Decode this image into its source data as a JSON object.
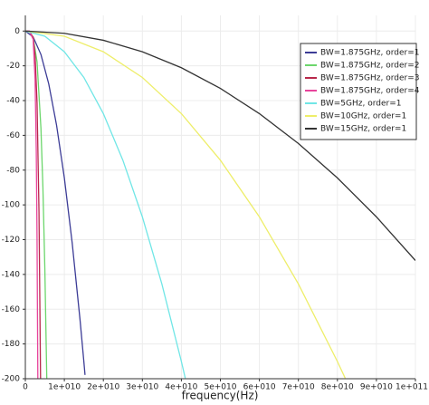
{
  "chart_data": {
    "type": "line",
    "x_label": "frequency(Hz)",
    "xlim": [
      0,
      100000000000
    ],
    "ylim": [
      -200,
      9
    ],
    "xticks": [
      0,
      {
        "value": 10000000000,
        "label": "1e+010"
      },
      {
        "value": 20000000000,
        "label": "2e+010"
      },
      {
        "value": 30000000000,
        "label": "3e+010"
      },
      {
        "value": 40000000000,
        "label": "4e+010"
      },
      {
        "value": 50000000000,
        "label": "5e+010"
      },
      {
        "value": 60000000000,
        "label": "6e+010"
      },
      {
        "value": 70000000000,
        "label": "7e+010"
      },
      {
        "value": 80000000000,
        "label": "8e+010"
      },
      {
        "value": 90000000000,
        "label": "9e+010"
      },
      {
        "value": 100000000000,
        "label": "1e+011"
      }
    ],
    "yticks": [
      0,
      -20,
      -40,
      -60,
      -80,
      -100,
      -120,
      -140,
      -160,
      -180,
      -200
    ],
    "grid": true,
    "legend": "upper right",
    "series": [
      {
        "name": "BW=1.875GHz, order=1",
        "color": "#3c3c96",
        "x": [
          0,
          2000000000,
          4000000000,
          6000000000,
          8000000000,
          10000000000,
          12000000000,
          14000000000,
          15000000000,
          15300000000
        ],
        "values": [
          0,
          -3.4,
          -13.5,
          -30.4,
          -54.1,
          -84.5,
          -121.7,
          -165.6,
          -190.1,
          -197.8
        ]
      },
      {
        "name": "BW=1.875GHz, order=2",
        "color": "#6cd66c",
        "x": [
          0,
          1000000000,
          2000000000,
          3000000000,
          4000000000,
          4500000000,
          5000000000,
          5500000000
        ],
        "values": [
          0,
          -0.2,
          -3.5,
          -17.7,
          -56,
          -89.6,
          -136.6,
          -200
        ]
      },
      {
        "name": "BW=1.875GHz, order=3",
        "color": "#b8284a",
        "x": [
          0,
          1000000000,
          2000000000,
          2500000000,
          3000000000,
          3500000000,
          3900000000
        ],
        "values": [
          0,
          -0.06,
          -3.6,
          -13.9,
          -41.4,
          -104.3,
          -200
        ]
      },
      {
        "name": "BW=1.875GHz, order=4",
        "color": "#e8449c",
        "x": [
          0,
          1000000000,
          2000000000,
          2500000000,
          2800000000,
          3000000000,
          3200000000
        ],
        "values": [
          0,
          -0.02,
          -4.7,
          -27.8,
          -68.8,
          -119.4,
          -200
        ]
      },
      {
        "name": "BW=5GHz, order=1",
        "color": "#70e6e6",
        "x": [
          0,
          5000000000,
          10000000000,
          15000000000,
          20000000000,
          25000000000,
          30000000000,
          35000000000,
          40000000000,
          41000000000
        ],
        "values": [
          0,
          -3,
          -11.9,
          -26.7,
          -47.5,
          -74.3,
          -106.9,
          -145.5,
          -190.1,
          -199.7
        ]
      },
      {
        "name": "BW=10GHz, order=1",
        "color": "#eeee6a",
        "x": [
          0,
          10000000000,
          20000000000,
          30000000000,
          40000000000,
          50000000000,
          60000000000,
          70000000000,
          80000000000,
          82000000000
        ],
        "values": [
          0,
          -3,
          -11.9,
          -26.7,
          -47.5,
          -74.3,
          -106.9,
          -145.5,
          -190.1,
          -199.7
        ]
      },
      {
        "name": "BW=15GHz, order=1",
        "color": "#333333",
        "x": [
          0,
          10000000000,
          20000000000,
          30000000000,
          40000000000,
          50000000000,
          60000000000,
          70000000000,
          80000000000,
          90000000000,
          100000000000
        ],
        "values": [
          0,
          -1.3,
          -5.3,
          -11.9,
          -21.1,
          -33,
          -47.5,
          -64.7,
          -84.5,
          -106.9,
          -132
        ]
      }
    ]
  }
}
